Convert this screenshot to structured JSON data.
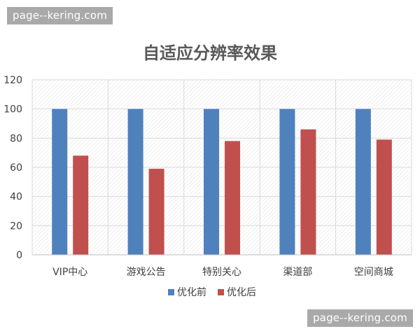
{
  "watermarks": {
    "top": "page--kering.com",
    "bottom": "page--kering.com"
  },
  "chart_data": {
    "type": "bar",
    "title": "自适应分辨率效果",
    "xlabel": "",
    "ylabel": "",
    "categories": [
      "VIP中心",
      "游戏公告",
      "特别关心",
      "渠道部",
      "空间商城"
    ],
    "series": [
      {
        "name": "优化前",
        "color": "#4f81bd",
        "values": [
          100,
          100,
          100,
          100,
          100
        ]
      },
      {
        "name": "优化后",
        "color": "#c0504d",
        "values": [
          68,
          59,
          78,
          86,
          79
        ]
      }
    ],
    "ylim": [
      0,
      120
    ],
    "yticks": [
      "0",
      "20",
      "40",
      "60",
      "80",
      "100",
      "120"
    ],
    "grid": true,
    "legend_position": "bottom"
  }
}
